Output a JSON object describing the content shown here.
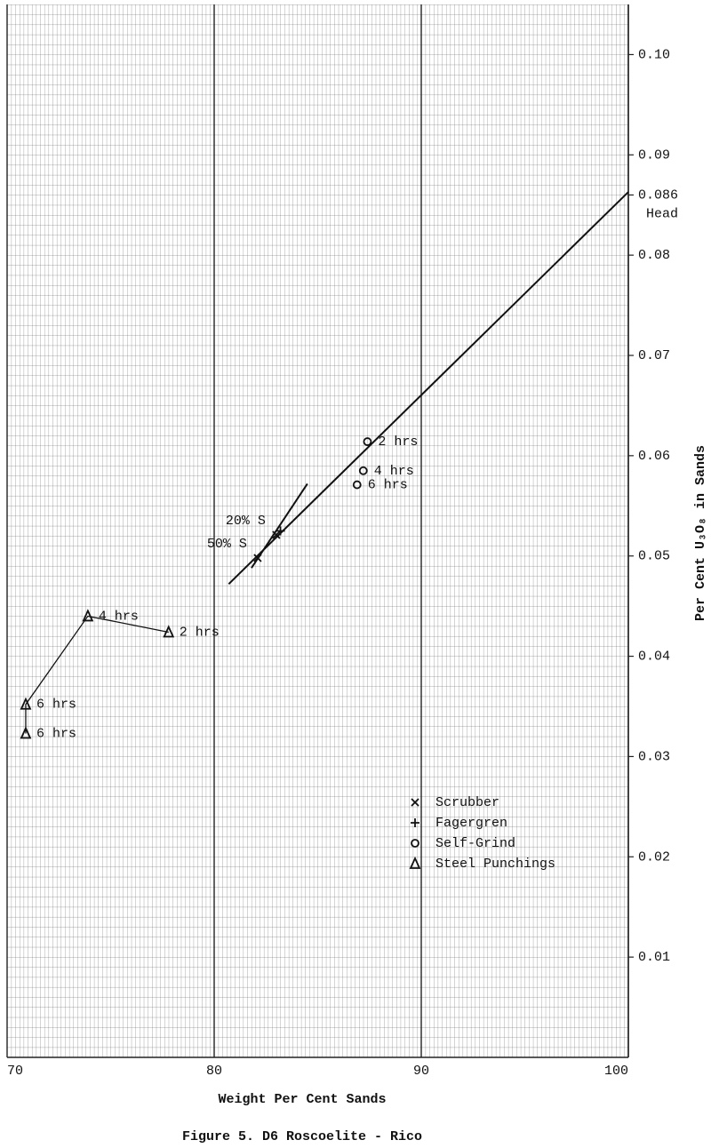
{
  "chart_data": {
    "type": "scatter",
    "title": "Figure 5. D6 Roscoelite - Rico",
    "x_label": "Weight Per Cent Sands",
    "y_label": "Per Cent U₃O₈ in Sands",
    "xlim": [
      70,
      100
    ],
    "ylim": [
      0,
      0.105
    ],
    "xticks": [
      70,
      80,
      90,
      100
    ],
    "yticks": [
      0.01,
      0.02,
      0.03,
      0.04,
      0.05,
      0.06,
      0.07,
      0.08,
      0.086,
      0.09,
      {
        "value": 0.1,
        "label": "0.10"
      }
    ],
    "head_label": "Head",
    "grid": true,
    "legend": "lower right",
    "color": "#111111",
    "series": [
      {
        "name": "Scrubber",
        "marker": "x",
        "x": [
          82.1,
          83.0
        ],
        "values": [
          0.0498,
          0.0521
        ],
        "point_labels": [
          "50% S",
          "20% S"
        ]
      },
      {
        "name": "Fagergren",
        "marker": "plus",
        "x": [
          83.2
        ],
        "values": [
          0.0525
        ]
      },
      {
        "name": "Self-Grind",
        "marker": "circle",
        "x": [
          87.4,
          87.2,
          86.9
        ],
        "values": [
          0.0614,
          0.0585,
          0.0571
        ],
        "point_labels": [
          "2 hrs",
          "4 hrs",
          "6 hrs"
        ]
      },
      {
        "name": "Steel Punchings",
        "marker": "triangle",
        "x": [
          77.8,
          73.9,
          70.9,
          70.9
        ],
        "values": [
          0.0424,
          0.044,
          0.0352,
          0.0323
        ],
        "point_labels": [
          "2 hrs",
          "4 hrs",
          "6 hrs",
          "6 hrs"
        ],
        "connect": true
      }
    ],
    "lines": [
      {
        "x": [
          80.7,
          100
        ],
        "values": [
          0.0472,
          0.0863
        ]
      },
      {
        "x": [
          81.8,
          84.5
        ],
        "values": [
          0.0488,
          0.0572
        ]
      }
    ]
  }
}
